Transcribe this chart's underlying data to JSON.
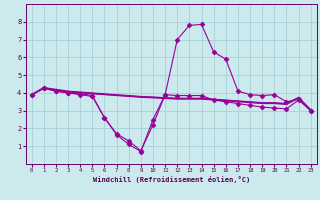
{
  "background_color": "#cce9ed",
  "grid_color": "#aad4d8",
  "line_color": "#990099",
  "xlabel": "Windchill (Refroidissement éolien,°C)",
  "xlim": [
    -0.5,
    23.5
  ],
  "ylim": [
    0,
    9
  ],
  "xticks": [
    0,
    1,
    2,
    3,
    4,
    5,
    6,
    7,
    8,
    9,
    10,
    11,
    12,
    13,
    14,
    15,
    16,
    17,
    18,
    19,
    20,
    21,
    22,
    23
  ],
  "yticks": [
    1,
    2,
    3,
    4,
    5,
    6,
    7,
    8
  ],
  "series": [
    {
      "x": [
        0,
        1,
        2,
        3,
        4,
        5,
        6,
        7,
        8,
        9,
        10,
        11,
        12,
        13,
        14,
        15,
        16,
        17,
        18,
        19,
        20,
        21,
        22,
        23
      ],
      "y": [
        3.9,
        4.25,
        4.1,
        4.0,
        3.95,
        3.85,
        2.6,
        1.7,
        1.3,
        0.75,
        2.2,
        3.9,
        3.85,
        3.85,
        3.85,
        3.6,
        3.5,
        3.4,
        3.3,
        3.2,
        3.15,
        3.1,
        3.6,
        3.0
      ],
      "marker": "D",
      "markersize": 2.5
    },
    {
      "x": [
        0,
        1,
        2,
        3,
        4,
        5,
        6,
        7,
        8,
        9,
        10,
        11,
        12,
        13,
        14,
        15,
        16,
        17,
        18,
        19,
        20,
        21,
        22,
        23
      ],
      "y": [
        3.9,
        4.25,
        4.15,
        4.05,
        4.0,
        3.95,
        3.9,
        3.85,
        3.8,
        3.75,
        3.72,
        3.68,
        3.65,
        3.65,
        3.65,
        3.6,
        3.55,
        3.5,
        3.45,
        3.4,
        3.4,
        3.35,
        3.7,
        3.05
      ],
      "marker": null,
      "markersize": 0
    },
    {
      "x": [
        0,
        1,
        2,
        3,
        4,
        5,
        6,
        7,
        8,
        9,
        10,
        11,
        12,
        13,
        14,
        15,
        16,
        17,
        18,
        19,
        20,
        21,
        22,
        23
      ],
      "y": [
        3.9,
        4.28,
        4.18,
        4.08,
        4.02,
        3.97,
        3.92,
        3.87,
        3.83,
        3.78,
        3.75,
        3.72,
        3.68,
        3.68,
        3.68,
        3.63,
        3.58,
        3.53,
        3.48,
        3.43,
        3.43,
        3.38,
        3.73,
        3.03
      ],
      "marker": null,
      "markersize": 0
    },
    {
      "x": [
        0,
        1,
        2,
        3,
        4,
        5,
        6,
        7,
        8,
        9,
        10,
        11,
        12,
        13,
        14,
        15,
        16,
        17,
        18,
        19,
        20,
        21,
        22,
        23
      ],
      "y": [
        3.9,
        4.3,
        4.2,
        4.1,
        4.05,
        4.0,
        3.95,
        3.9,
        3.85,
        3.8,
        3.77,
        3.73,
        3.7,
        3.7,
        3.7,
        3.65,
        3.6,
        3.55,
        3.5,
        3.45,
        3.45,
        3.4,
        3.75,
        3.05
      ],
      "marker": null,
      "markersize": 0
    },
    {
      "x": [
        0,
        1,
        2,
        3,
        4,
        5,
        6,
        7,
        8,
        9,
        10,
        11,
        12,
        13,
        14,
        15,
        16,
        17,
        18,
        19,
        20,
        21,
        22,
        23
      ],
      "y": [
        3.9,
        4.3,
        4.1,
        4.0,
        3.9,
        3.8,
        2.6,
        1.65,
        1.1,
        0.7,
        2.5,
        3.9,
        7.0,
        7.8,
        7.85,
        6.3,
        5.9,
        4.1,
        3.9,
        3.85,
        3.9,
        3.5,
        3.65,
        3.0
      ],
      "marker": "D",
      "markersize": 2.5
    }
  ]
}
